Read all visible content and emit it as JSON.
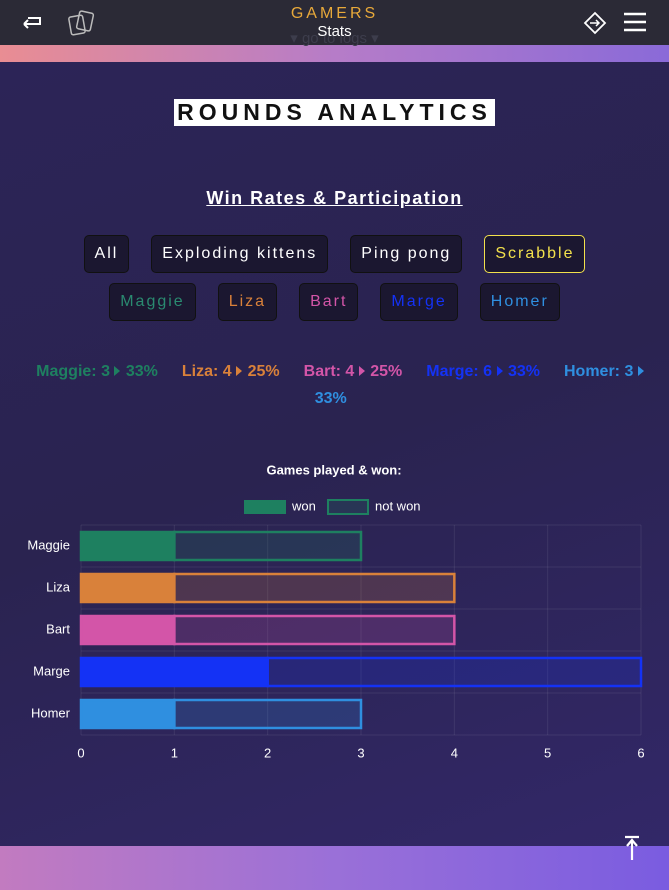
{
  "header": {
    "brand": "GAMERS",
    "subtitle": "Stats",
    "nav_link": "▾ go to logs ▾"
  },
  "section_title": "ROUNDS ANALYTICS",
  "subsection_title": "Win Rates & Participation",
  "filters": [
    {
      "label": "All",
      "color": "#ffffff"
    },
    {
      "label": "Exploding kittens",
      "color": "#ffffff"
    },
    {
      "label": "Ping pong",
      "color": "#ffffff"
    },
    {
      "label": "Scrabble",
      "color": "#f2e14c",
      "selected": true
    },
    {
      "label": "Maggie",
      "color": "#2a8a70"
    },
    {
      "label": "Liza",
      "color": "#d9813a"
    },
    {
      "label": "Bart",
      "color": "#d355a8"
    },
    {
      "label": "Marge",
      "color": "#1432f5"
    },
    {
      "label": "Homer",
      "color": "#2f8fe0"
    }
  ],
  "summary": [
    {
      "label": "Maggie: 3",
      "rate": "33%",
      "color": "#1e8060"
    },
    {
      "label": "Liza: 4",
      "rate": "25%",
      "color": "#d9813a"
    },
    {
      "label": "Bart: 4",
      "rate": "25%",
      "color": "#d355a8"
    },
    {
      "label": "Marge: 6",
      "rate": "33%",
      "color": "#1432f5"
    },
    {
      "label": "Homer: 3",
      "rate": "33%",
      "color": "#2f8fe0"
    }
  ],
  "chart_data": {
    "type": "bar",
    "orientation": "horizontal",
    "stacked": true,
    "title": "Games played & won:",
    "categories": [
      "Maggie",
      "Liza",
      "Bart",
      "Marge",
      "Homer"
    ],
    "category_colors": [
      "#1e8060",
      "#d9813a",
      "#d355a8",
      "#1432f5",
      "#2f8fe0"
    ],
    "series": [
      {
        "name": "won",
        "color": "#1e8060",
        "values": [
          1,
          1,
          1,
          2,
          1
        ]
      },
      {
        "name": "not won",
        "color": "#1e8060",
        "values": [
          2,
          3,
          3,
          4,
          2
        ]
      }
    ],
    "xlim": [
      0,
      6
    ],
    "xticks": [
      0,
      1,
      2,
      3,
      4,
      5,
      6
    ],
    "grid": true
  }
}
